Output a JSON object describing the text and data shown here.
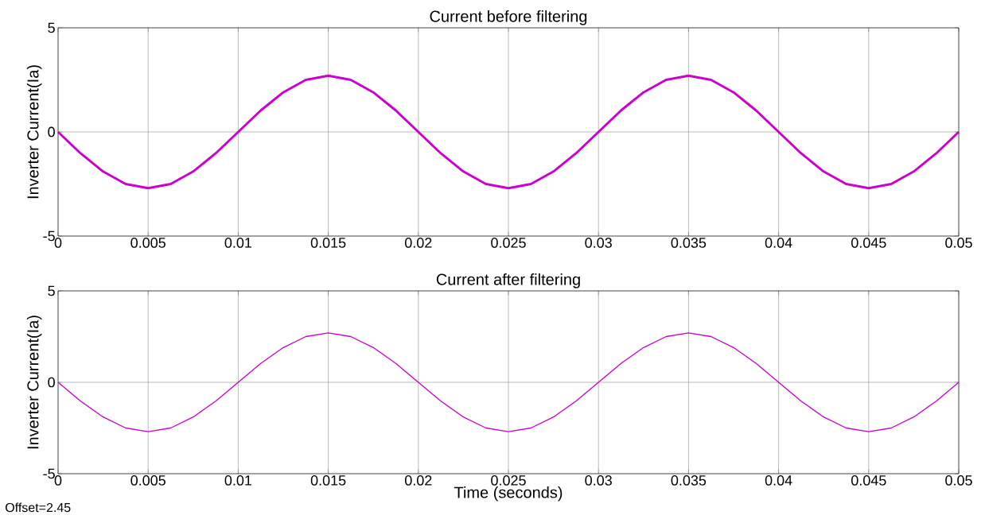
{
  "chart_data": [
    {
      "type": "line",
      "title": "Current before filtering",
      "ylabel": "Inverter Current(Ia)",
      "xlim": [
        0,
        0.05
      ],
      "ylim": [
        -5,
        5
      ],
      "xticks": [
        0,
        0.005,
        0.01,
        0.015,
        0.02,
        0.025,
        0.03,
        0.035,
        0.04,
        0.045,
        0.05
      ],
      "yticks": [
        -5,
        0,
        5
      ],
      "grid": true,
      "x": [
        0,
        0.00125,
        0.0025,
        0.00375,
        0.005,
        0.00625,
        0.0075,
        0.00875,
        0.01,
        0.01125,
        0.0125,
        0.01375,
        0.015,
        0.01625,
        0.0175,
        0.01875,
        0.02,
        0.02125,
        0.0225,
        0.02375,
        0.025,
        0.02625,
        0.0275,
        0.02875,
        0.03,
        0.03125,
        0.0325,
        0.03375,
        0.035,
        0.03625,
        0.0375,
        0.03875,
        0.04,
        0.04125,
        0.0425,
        0.04375,
        0.045,
        0.04625,
        0.0475,
        0.04875,
        0.05
      ],
      "series": [
        {
          "color": "#cc00cc",
          "values": [
            0,
            -1.03,
            -1.9,
            -2.5,
            -2.7,
            -2.5,
            -1.9,
            -1.03,
            0,
            1.03,
            1.9,
            2.5,
            2.7,
            2.5,
            1.9,
            1.03,
            0,
            -1.03,
            -1.9,
            -2.5,
            -2.7,
            -2.5,
            -1.9,
            -1.03,
            0,
            1.03,
            1.9,
            2.5,
            2.7,
            2.5,
            1.9,
            1.03,
            0,
            -1.03,
            -1.9,
            -2.5,
            -2.7,
            -2.5,
            -1.9,
            -1.03,
            0
          ]
        }
      ]
    },
    {
      "type": "line",
      "title": "Current after filtering",
      "xlabel": "Time (seconds)",
      "ylabel": "Inverter Current(Ia)",
      "xlim": [
        0,
        0.05
      ],
      "ylim": [
        -5,
        5
      ],
      "xticks": [
        0,
        0.005,
        0.01,
        0.015,
        0.02,
        0.025,
        0.03,
        0.035,
        0.04,
        0.045,
        0.05
      ],
      "yticks": [
        -5,
        0,
        5
      ],
      "grid": true,
      "annotations": [
        "Offset=2.45"
      ],
      "x": [
        0,
        0.00125,
        0.0025,
        0.00375,
        0.005,
        0.00625,
        0.0075,
        0.00875,
        0.01,
        0.01125,
        0.0125,
        0.01375,
        0.015,
        0.01625,
        0.0175,
        0.01875,
        0.02,
        0.02125,
        0.0225,
        0.02375,
        0.025,
        0.02625,
        0.0275,
        0.02875,
        0.03,
        0.03125,
        0.0325,
        0.03375,
        0.035,
        0.03625,
        0.0375,
        0.03875,
        0.04,
        0.04125,
        0.0425,
        0.04375,
        0.045,
        0.04625,
        0.0475,
        0.04875,
        0.05
      ],
      "series": [
        {
          "color": "#cc00cc",
          "values": [
            0,
            -1.03,
            -1.9,
            -2.5,
            -2.7,
            -2.5,
            -1.9,
            -1.03,
            0,
            1.03,
            1.9,
            2.5,
            2.7,
            2.5,
            1.9,
            1.03,
            0,
            -1.03,
            -1.9,
            -2.5,
            -2.7,
            -2.5,
            -1.9,
            -1.03,
            0,
            1.03,
            1.9,
            2.5,
            2.7,
            2.5,
            1.9,
            1.03,
            0,
            -1.03,
            -1.9,
            -2.5,
            -2.7,
            -2.5,
            -1.9,
            -1.03,
            0
          ]
        }
      ]
    }
  ]
}
